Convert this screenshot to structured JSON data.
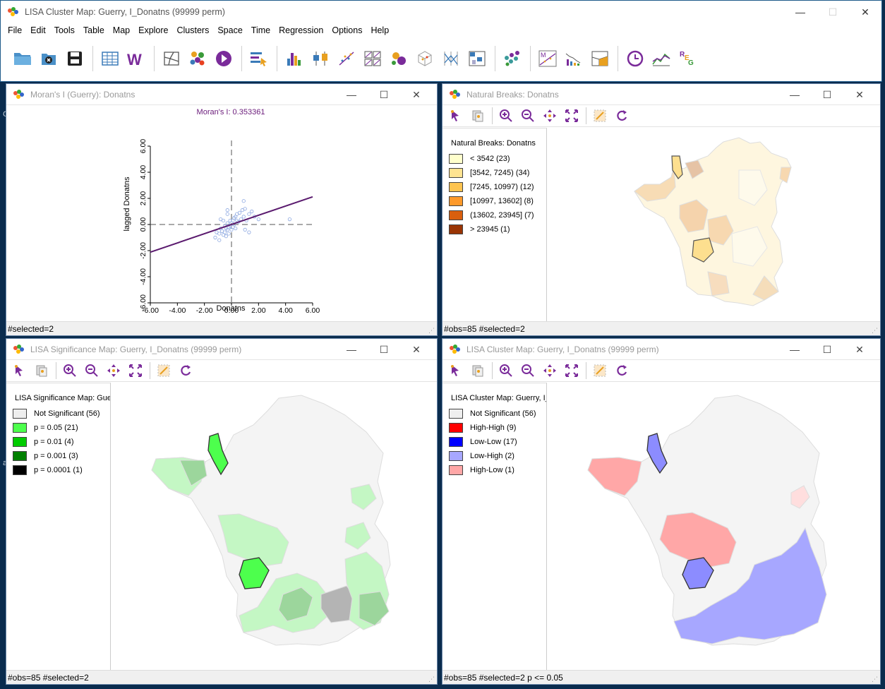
{
  "main_window": {
    "title": "LISA Cluster Map: Guerry, I_Donatns (99999 perm)",
    "menus": [
      "File",
      "Edit",
      "Tools",
      "Table",
      "Map",
      "Explore",
      "Clusters",
      "Space",
      "Time",
      "Regression",
      "Options",
      "Help"
    ],
    "toolbar_icons": [
      "open-folder-icon",
      "close-project-icon",
      "save-icon",
      "table-icon",
      "weights-manager-icon",
      "map-icon",
      "cluster-tools-icon",
      "play-icon",
      "select-tool-icon",
      "histogram-icon",
      "box-plot-icon",
      "scatter-plot-icon",
      "scatter-matrix-icon",
      "bubble-chart-icon",
      "3d-plot-icon",
      "parallel-coordinates-icon",
      "conditional-plot-icon",
      "multivariate-clusters-icon",
      "morans-i-icon",
      "correlogram-icon",
      "cartogram-icon",
      "time-editor-icon",
      "averages-chart-icon",
      "regression-icon"
    ]
  },
  "moran_window": {
    "title": "Moran's I (Guerry): Donatns",
    "status": "#selected=2",
    "chart_data": {
      "type": "scatter",
      "title": "Moran's I: 0.353361",
      "xlabel": "Donatns",
      "ylabel": "lagged Donatns",
      "xlim": [
        -6,
        6
      ],
      "ylim": [
        -6,
        6
      ],
      "x_ticks": [
        "-6.00",
        "-4.00",
        "-2.00",
        "0.00",
        "2.00",
        "4.00",
        "6.00"
      ],
      "y_ticks": [
        "-6.00",
        "-4.00",
        "-2.00",
        "0.00",
        "2.00",
        "4.00",
        "6.00"
      ],
      "slope": 0.353361,
      "points": [
        [
          -1.1,
          -0.6
        ],
        [
          -0.9,
          -0.7
        ],
        [
          -0.8,
          -0.3
        ],
        [
          -0.7,
          -0.5
        ],
        [
          -0.6,
          -0.8
        ],
        [
          -0.5,
          -0.1
        ],
        [
          -0.5,
          -0.6
        ],
        [
          -0.4,
          -0.3
        ],
        [
          -0.4,
          -0.9
        ],
        [
          -0.3,
          0.1
        ],
        [
          -0.3,
          -0.4
        ],
        [
          -0.2,
          -0.2
        ],
        [
          -0.2,
          -0.7
        ],
        [
          -0.1,
          0.3
        ],
        [
          -0.1,
          -0.1
        ],
        [
          0.0,
          0.1
        ],
        [
          0.0,
          -0.4
        ],
        [
          0.1,
          0.3
        ],
        [
          0.1,
          -0.2
        ],
        [
          0.2,
          0.5
        ],
        [
          0.2,
          0.0
        ],
        [
          0.3,
          0.6
        ],
        [
          0.3,
          -0.3
        ],
        [
          0.4,
          0.8
        ],
        [
          0.4,
          0.3
        ],
        [
          0.5,
          0.2
        ],
        [
          0.6,
          0.9
        ],
        [
          0.7,
          0.4
        ],
        [
          0.8,
          1.1
        ],
        [
          0.9,
          0.6
        ],
        [
          1.0,
          1.2
        ],
        [
          1.1,
          0.3
        ],
        [
          1.3,
          0.8
        ],
        [
          1.5,
          1.0
        ],
        [
          1.7,
          0.6
        ],
        [
          1.0,
          -0.4
        ],
        [
          1.3,
          -0.6
        ],
        [
          2.0,
          0.4
        ],
        [
          -0.8,
          0.4
        ],
        [
          -0.6,
          0.3
        ],
        [
          -1.2,
          -1.0
        ],
        [
          -0.9,
          -1.2
        ],
        [
          4.3,
          0.4
        ],
        [
          0.9,
          1.8
        ],
        [
          -0.3,
          1.1
        ],
        [
          -0.3,
          0.8
        ]
      ]
    }
  },
  "natural_breaks_window": {
    "title": "Natural Breaks: Donatns",
    "status": "#obs=85 #selected=2",
    "legend_title": "Natural Breaks: Donatns",
    "legend": [
      {
        "label": "< 3542 (23)",
        "color": "#ffffcc"
      },
      {
        "label": "[3542, 7245) (34)",
        "color": "#fee391"
      },
      {
        "label": "[7245, 10997) (12)",
        "color": "#fec44f"
      },
      {
        "label": "[10997, 13602] (8)",
        "color": "#fe9929"
      },
      {
        "label": "(13602, 23945] (7)",
        "color": "#d95f0e"
      },
      {
        "label": "> 23945 (1)",
        "color": "#993404"
      }
    ]
  },
  "significance_window": {
    "title": "LISA Significance Map: Guerry, I_Donatns (99999 perm)",
    "status": "#obs=85 #selected=2",
    "legend_title": "LISA Significance Map: Gue",
    "legend": [
      {
        "label": "Not Significant (56)",
        "color": "#eeeeee"
      },
      {
        "label": "p = 0.05 (21)",
        "color": "#4dff4d"
      },
      {
        "label": "p = 0.01 (4)",
        "color": "#00cc00"
      },
      {
        "label": "p = 0.001 (3)",
        "color": "#008000"
      },
      {
        "label": "p = 0.0001 (1)",
        "color": "#000000"
      }
    ]
  },
  "cluster_window": {
    "title": "LISA Cluster Map: Guerry, I_Donatns (99999 perm)",
    "status": "#obs=85 #selected=2  p <= 0.05",
    "legend_title": "LISA Cluster Map: Guerry, I_",
    "legend": [
      {
        "label": "Not Significant (56)",
        "color": "#eeeeee"
      },
      {
        "label": "High-High (9)",
        "color": "#ff0000"
      },
      {
        "label": "Low-Low (17)",
        "color": "#0000ff"
      },
      {
        "label": "Low-High (2)",
        "color": "#a7a7ff"
      },
      {
        "label": "High-Low (1)",
        "color": "#ffa7a7"
      }
    ]
  },
  "child_toolbar_icons": [
    "select-icon",
    "copy-image-icon",
    "zoom-in-icon",
    "zoom-out-icon",
    "pan-icon",
    "full-extent-icon",
    "brush-icon",
    "refresh-icon"
  ]
}
